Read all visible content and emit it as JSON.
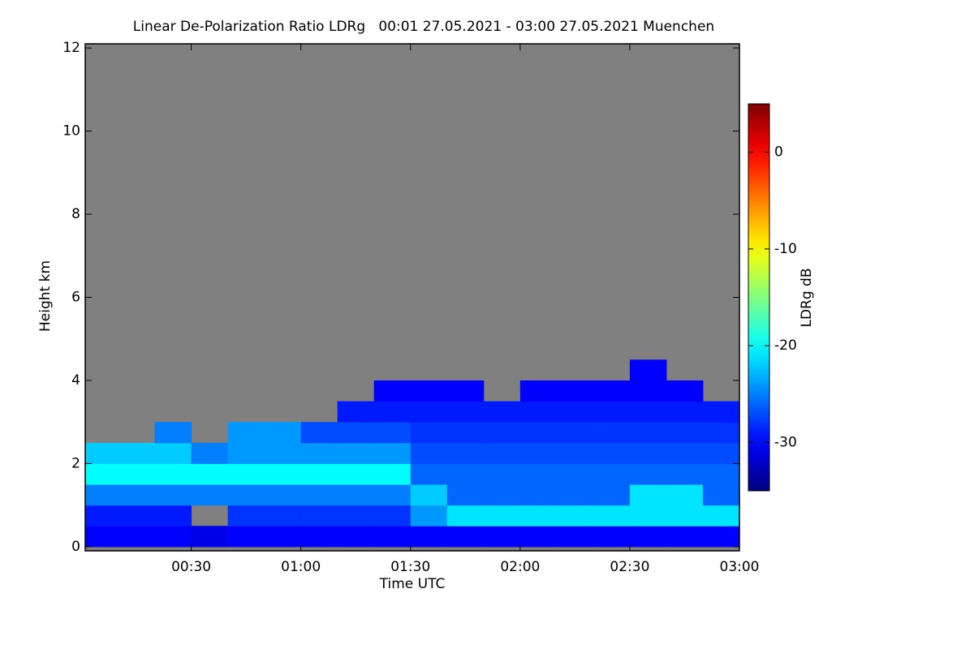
{
  "chart_data": {
    "type": "heatmap",
    "title": "Linear De-Polarization Ratio LDRg   00:01 27.05.2021 - 03:00 27.05.2021 Muenchen",
    "x_label": "Time UTC",
    "y_label": "Height km",
    "colorbar_label": "LDRg dB",
    "colormap": "jet",
    "missing_color": "#808080",
    "xlim": [
      1,
      180
    ],
    "xticks": [
      {
        "value": 30,
        "label": "00:30"
      },
      {
        "value": 60,
        "label": "01:00"
      },
      {
        "value": 90,
        "label": "01:30"
      },
      {
        "value": 120,
        "label": "02:00"
      },
      {
        "value": 150,
        "label": "02:30"
      },
      {
        "value": 180,
        "label": "03:00"
      }
    ],
    "ylim": [
      -0.1,
      12.1
    ],
    "yticks": [
      0,
      2,
      4,
      6,
      8,
      10,
      12
    ],
    "clim": [
      -35,
      5
    ],
    "cticks": [
      0,
      -10,
      -20,
      -30
    ],
    "x": [
      5,
      15,
      25,
      35,
      45,
      55,
      65,
      75,
      85,
      95,
      105,
      115,
      125,
      135,
      145,
      155,
      165,
      175
    ],
    "y": [
      0.25,
      0.75,
      1.25,
      1.75,
      2.25,
      2.75,
      3.25,
      3.75,
      4.25
    ],
    "values": [
      [
        -30,
        -30,
        -30,
        -31,
        -30,
        -30,
        -30,
        -30,
        -30,
        -30,
        -30,
        -30,
        -30,
        -30,
        -30,
        -30,
        -30,
        -30
      ],
      [
        -29,
        -29,
        -29,
        null,
        -28,
        -28,
        -28,
        -28,
        -28,
        -24,
        -21,
        -21,
        -21,
        -21,
        -21,
        -21,
        -21,
        -21
      ],
      [
        -25,
        -25,
        -25,
        -25,
        -25,
        -25,
        -25,
        -25,
        -25,
        -22,
        -26,
        -26,
        -26,
        -26,
        -26,
        -21,
        -21,
        -26
      ],
      [
        -20,
        -20,
        -20,
        -20,
        -20,
        -20,
        -20,
        -20,
        -20,
        -26,
        -26,
        -26,
        -26,
        -26,
        -26,
        -26,
        -26,
        -26
      ],
      [
        -22,
        -22,
        -22,
        -25,
        -24,
        -24,
        -24,
        -24,
        -24,
        -27,
        -27,
        -27,
        -27,
        -27,
        -27,
        -27,
        -27,
        -27
      ],
      [
        null,
        null,
        -25,
        null,
        -24,
        -24,
        -27,
        -27,
        -27,
        -28,
        -28,
        -28,
        -28,
        -28,
        -28,
        -28,
        -28,
        -28
      ],
      [
        null,
        null,
        null,
        null,
        null,
        null,
        null,
        -29,
        -29,
        -29,
        -29,
        -29,
        -29,
        -29,
        -29,
        -29,
        -29,
        -29
      ],
      [
        null,
        null,
        null,
        null,
        null,
        null,
        null,
        null,
        -30,
        -30,
        -30,
        null,
        -30,
        -30,
        -30,
        -30,
        -30,
        null
      ],
      [
        null,
        null,
        null,
        null,
        null,
        null,
        null,
        null,
        null,
        null,
        null,
        null,
        null,
        null,
        null,
        -30,
        null,
        null
      ]
    ]
  }
}
